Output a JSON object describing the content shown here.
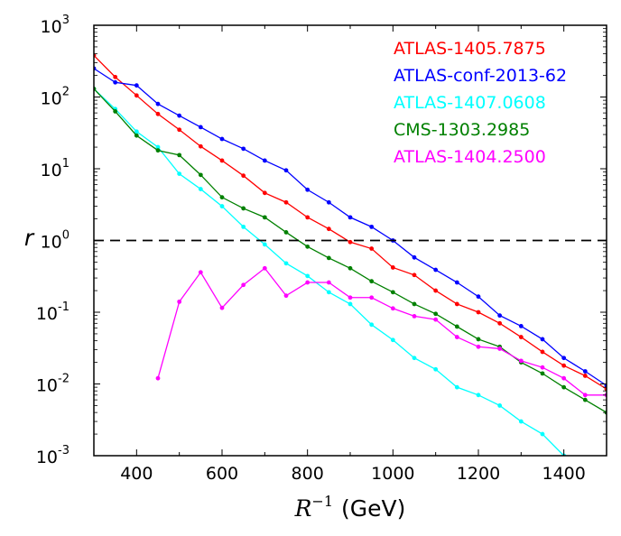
{
  "chart_data": {
    "type": "line",
    "yscale": "log",
    "xlim": [
      300,
      1500
    ],
    "ylim": [
      0.001,
      1000
    ],
    "xlabel": "R^{-1} (GeV)",
    "xlabel_var": "R",
    "xlabel_exp": "−1",
    "xlabel_unit": "(GeV)",
    "ylabel": "r",
    "x_ticks": [
      "400",
      "600",
      "800",
      "1000",
      "1200",
      "1400"
    ],
    "x_tick_values": [
      400,
      600,
      800,
      1000,
      1200,
      1400
    ],
    "y_ticks": [
      {
        "base": "10",
        "exp": "-3"
      },
      {
        "base": "10",
        "exp": "-2"
      },
      {
        "base": "10",
        "exp": "-1"
      },
      {
        "base": "10",
        "exp": "0"
      },
      {
        "base": "10",
        "exp": "1"
      },
      {
        "base": "10",
        "exp": "2"
      },
      {
        "base": "10",
        "exp": "3"
      }
    ],
    "y_tick_values": [
      0.001,
      0.01,
      0.1,
      1,
      10,
      100,
      1000
    ],
    "reference_line": {
      "y": 1,
      "style": "dashed",
      "color": "#000000"
    },
    "legend_position": "top-right",
    "series": [
      {
        "name": "ATLAS-1405.7875",
        "color": "#ff0000",
        "x": [
          300,
          350,
          400,
          450,
          500,
          550,
          600,
          650,
          700,
          750,
          800,
          850,
          900,
          950,
          1000,
          1050,
          1100,
          1150,
          1200,
          1250,
          1300,
          1350,
          1400,
          1450,
          1500
        ],
        "y": [
          380,
          190,
          105,
          58,
          35,
          20.5,
          13,
          8,
          4.6,
          3.4,
          2.1,
          1.45,
          0.95,
          0.77,
          0.42,
          0.33,
          0.2,
          0.13,
          0.1,
          0.07,
          0.045,
          0.028,
          0.018,
          0.013,
          0.0085
        ]
      },
      {
        "name": "ATLAS-conf-2013-62",
        "color": "#0000ff",
        "x": [
          300,
          350,
          400,
          450,
          500,
          550,
          600,
          650,
          700,
          750,
          800,
          850,
          900,
          950,
          1000,
          1050,
          1100,
          1150,
          1200,
          1250,
          1300,
          1350,
          1400,
          1450,
          1500
        ],
        "y": [
          250,
          160,
          145,
          80,
          55,
          38,
          26,
          19,
          13,
          9.5,
          5.1,
          3.4,
          2.1,
          1.55,
          1.0,
          0.58,
          0.39,
          0.26,
          0.165,
          0.09,
          0.064,
          0.042,
          0.023,
          0.015,
          0.0095
        ]
      },
      {
        "name": "ATLAS-1407.0608",
        "color": "#00ffff",
        "x": [
          300,
          350,
          400,
          450,
          500,
          550,
          600,
          650,
          700,
          750,
          800,
          850,
          900,
          950,
          1000,
          1050,
          1100,
          1150,
          1200,
          1250,
          1300,
          1350,
          1400
        ],
        "y": [
          130,
          68,
          33,
          20,
          8.5,
          5.2,
          3.0,
          1.55,
          0.88,
          0.48,
          0.32,
          0.19,
          0.13,
          0.067,
          0.041,
          0.023,
          0.016,
          0.009,
          0.007,
          0.005,
          0.003,
          0.002,
          0.001
        ]
      },
      {
        "name": "CMS-1303.2985",
        "color": "#008000",
        "x": [
          300,
          350,
          400,
          450,
          500,
          550,
          600,
          650,
          700,
          750,
          800,
          850,
          900,
          950,
          1000,
          1050,
          1100,
          1150,
          1200,
          1250,
          1300,
          1350,
          1400,
          1450,
          1500
        ],
        "y": [
          130,
          63,
          29,
          18,
          15.5,
          8.2,
          4.0,
          2.8,
          2.1,
          1.3,
          0.82,
          0.57,
          0.41,
          0.27,
          0.19,
          0.13,
          0.095,
          0.063,
          0.042,
          0.033,
          0.02,
          0.014,
          0.009,
          0.006,
          0.004
        ]
      },
      {
        "name": "ATLAS-1404.2500",
        "color": "#ff00ff",
        "x": [
          450,
          500,
          550,
          600,
          650,
          700,
          750,
          800,
          850,
          900,
          950,
          1000,
          1050,
          1100,
          1150,
          1200,
          1250,
          1300,
          1350,
          1400,
          1450,
          1500
        ],
        "y": [
          0.012,
          0.14,
          0.36,
          0.115,
          0.24,
          0.41,
          0.17,
          0.26,
          0.26,
          0.16,
          0.16,
          0.113,
          0.088,
          0.079,
          0.045,
          0.033,
          0.031,
          0.021,
          0.017,
          0.012,
          0.007,
          0.007
        ]
      }
    ]
  }
}
